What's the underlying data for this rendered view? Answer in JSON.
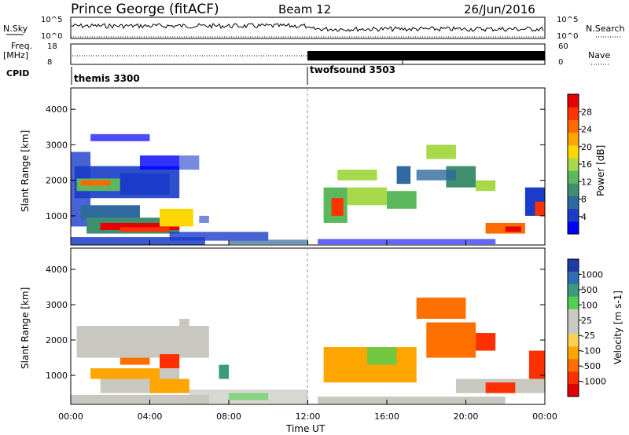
{
  "header": {
    "station": "Prince George (fitACF)",
    "beam": "Beam 12",
    "date": "26/Jun/2016"
  },
  "strip_labels": {
    "nsky": "N.Sky",
    "nsearch": "N.Search",
    "freq": "Freq.",
    "freq_unit": "[MHz]",
    "nave": "Nave",
    "cpid": "CPID",
    "noise_ticks": [
      "10^5",
      "10^0"
    ],
    "freq_ticks": [
      "18",
      "8"
    ],
    "nave_ticks": [
      "60",
      "0"
    ]
  },
  "cpid_segments": [
    {
      "label": "themis 3300",
      "start_hour": 0
    },
    {
      "label": "twofsound 3503",
      "start_hour": 12
    }
  ],
  "chart_data": [
    {
      "type": "heatmap",
      "name": "power",
      "ylabel": "Slant Range [km]",
      "ylim": [
        180,
        4600
      ],
      "yticks": [
        1000,
        2000,
        3000,
        4000
      ],
      "xlabel": "",
      "xlim": [
        0,
        24
      ],
      "colorbar": {
        "label": "Power [dB]",
        "ticks": [
          "4",
          "8",
          "12",
          "16",
          "20",
          "24",
          "28"
        ],
        "colors": [
          "#0000ff",
          "#1a3cc8",
          "#2e6a9e",
          "#3f8f6f",
          "#5cb85c",
          "#a8d94a",
          "#ffd700",
          "#ffa500",
          "#ff6a00",
          "#ff3300",
          "#e60000"
        ]
      }
    },
    {
      "type": "heatmap",
      "name": "velocity",
      "ylabel": "Slant Range [km]",
      "ylim": [
        180,
        4600
      ],
      "yticks": [
        1000,
        2000,
        3000,
        4000
      ],
      "xlabel": "Time UT",
      "xlim": [
        0,
        24
      ],
      "xticks": [
        "00:00",
        "04:00",
        "08:00",
        "12:00",
        "16:00",
        "20:00",
        "00:00"
      ],
      "colorbar": {
        "label": "Velocity [m s-1]",
        "ticks": [
          "1000",
          "500",
          "100",
          "25",
          "-25",
          "-100",
          "-500",
          "-1000"
        ],
        "colors": [
          "#1f3ba8",
          "#2f6eb0",
          "#3b9b7a",
          "#4fd04f",
          "#c8c8c0",
          "#c8c8c0",
          "#ffd050",
          "#ffa500",
          "#ff7000",
          "#ff3000",
          "#e00000"
        ]
      }
    }
  ]
}
